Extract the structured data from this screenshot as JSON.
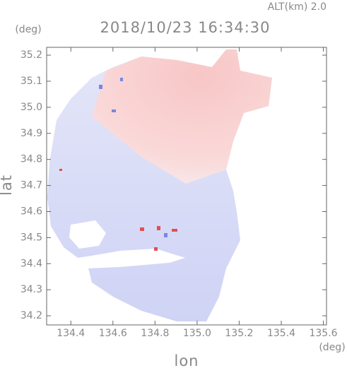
{
  "chart_data": {
    "type": "map",
    "title": "2018/10/23 16:34:30",
    "subtitle": "ALT(km) 2.0",
    "x_label": "lon",
    "y_label": "lat",
    "x_unit": "(deg)",
    "y_unit": "(deg)",
    "xlim": [
      134.285,
      135.615
    ],
    "ylim": [
      34.165,
      35.23
    ],
    "xticks": [
      134.4,
      134.6,
      134.8,
      {
        "value": 135,
        "label": "135.0"
      },
      135.2,
      135.4,
      135.6
    ],
    "yticks": [
      34.2,
      34.3,
      34.4,
      34.5,
      34.6,
      34.7,
      34.8,
      34.9,
      {
        "value": 35,
        "label": "35.0"
      },
      35.1,
      35.2
    ]
  }
}
